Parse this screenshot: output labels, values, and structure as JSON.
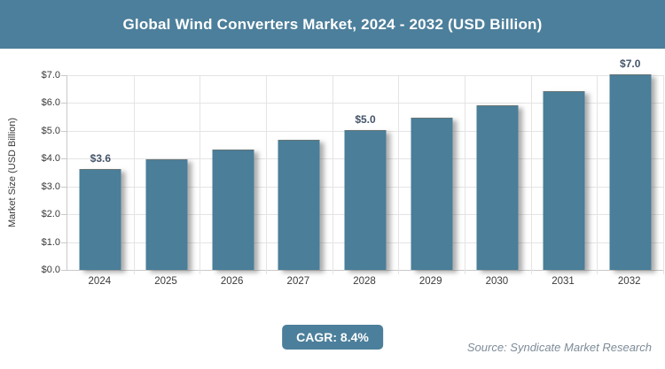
{
  "header": {
    "title": "Global Wind Converters Market, 2024 - 2032 (USD Billion)"
  },
  "chart_data": {
    "type": "bar",
    "title": "Global Wind Converters Market, 2024 - 2032 (USD Billion)",
    "categories": [
      "2024",
      "2025",
      "2026",
      "2027",
      "2028",
      "2029",
      "2030",
      "2031",
      "2032"
    ],
    "values": [
      3.6,
      3.95,
      4.3,
      4.65,
      5.0,
      5.45,
      5.9,
      6.4,
      7.0
    ],
    "bar_labels": [
      "$3.6",
      "",
      "",
      "",
      "$5.0",
      "",
      "",
      "",
      "$7.0"
    ],
    "ylabel": "Market Size (USD Billion)",
    "xlabel": "",
    "ylim": [
      0,
      7
    ],
    "ytick_labels_top_to_bottom": [
      "$7.0",
      "$6.0",
      "$5.0",
      "$4.0",
      "$3.0",
      "$2.0",
      "$1.0",
      "$0.0"
    ],
    "grid": true,
    "legend_position": "none",
    "bar_color": "#4A7E99"
  },
  "footer": {
    "cagr_label": "CAGR: 8.4%",
    "source": "Source: Syndicate Market Research"
  },
  "colors": {
    "accent": "#4C7F9B",
    "header_bg": "#4C7F9B",
    "bar": "#4A7E99",
    "grid": "#E4E4E4",
    "axis": "#C9C9C9",
    "tick_text": "#3A3A3A",
    "data_label": "#44546A",
    "source_text": "#7E8C99",
    "title_text": "#FFFFFF"
  }
}
